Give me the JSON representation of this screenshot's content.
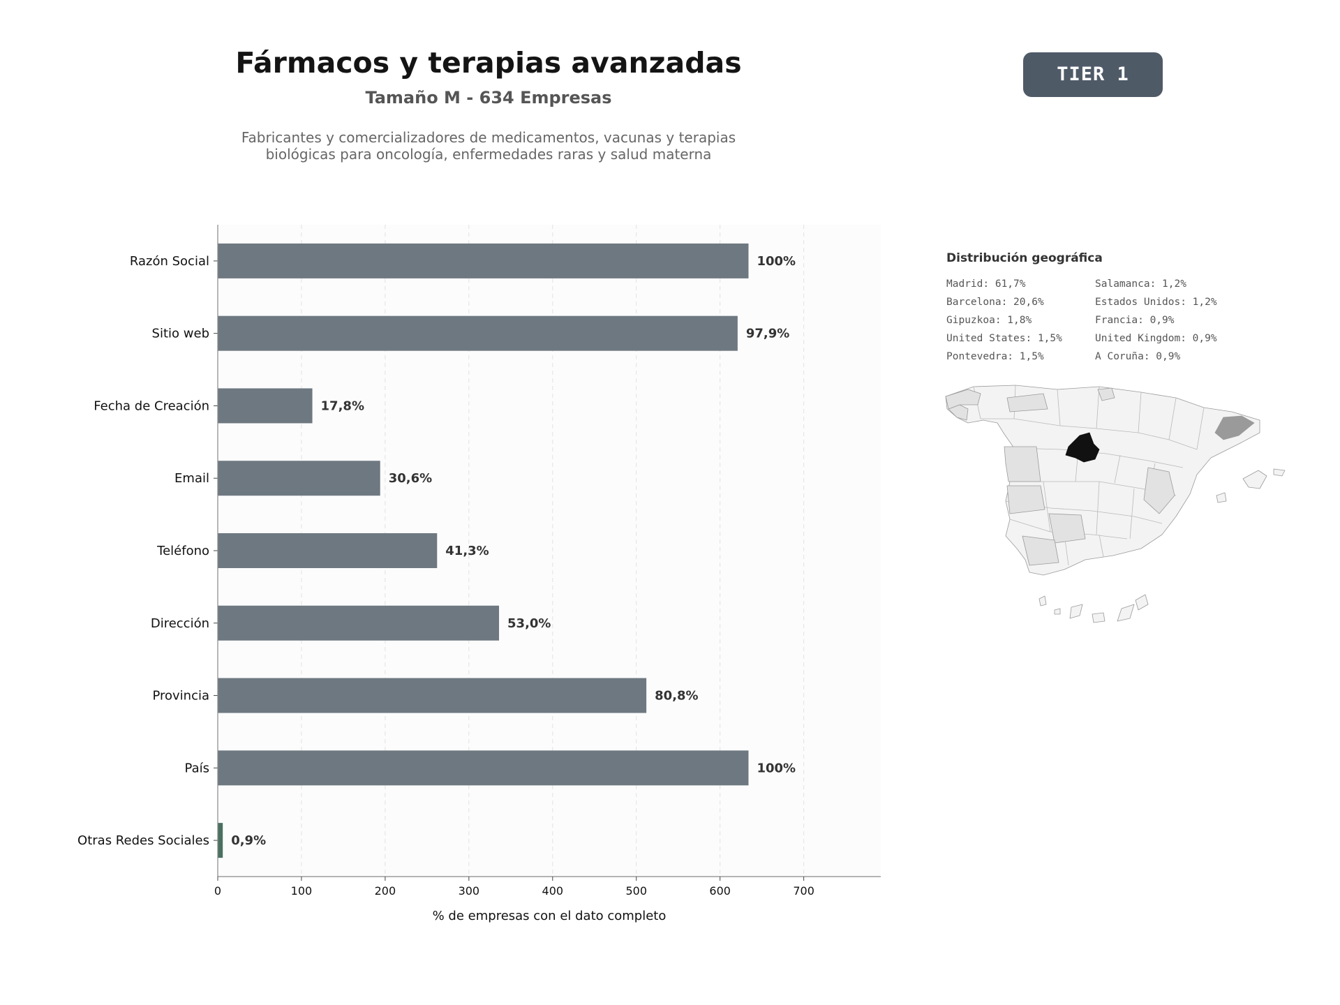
{
  "header": {
    "title": "Fármacos y terapias avanzadas",
    "subtitle": "Tamaño M - 634 Empresas",
    "description_line1": "Fabricantes y comercializadores de medicamentos, vacunas y terapias",
    "description_line2": "biológicas para oncología, enfermedades raras y salud materna",
    "tier": "TIER 1"
  },
  "chart_data": {
    "type": "bar",
    "orientation": "horizontal",
    "categories": [
      "Razón Social",
      "Sitio web",
      "Fecha de Creación",
      "Email",
      "Teléfono",
      "Dirección",
      "Provincia",
      "País",
      "Otras Redes Sociales"
    ],
    "values": [
      634,
      621,
      113,
      194,
      262,
      336,
      512,
      634,
      6
    ],
    "data_labels": [
      "100%",
      "97,9%",
      "17,8%",
      "30,6%",
      "41,3%",
      "53,0%",
      "80,8%",
      "100%",
      "0,9%"
    ],
    "xlabel": "% de empresas con el dato completo",
    "xlim": [
      0,
      792
    ],
    "xticks": [
      0,
      100,
      200,
      300,
      400,
      500,
      600,
      700
    ],
    "grid": "vertical dashed",
    "colors": {
      "bar": "#6e7881",
      "highlight": "#4a7060"
    },
    "highlight_index": 8
  },
  "geo": {
    "title": "Distribución geográfica",
    "items": [
      "Madrid: 61,7%",
      "Salamanca: 1,2%",
      "Barcelona: 20,6%",
      "Estados Unidos: 1,2%",
      "Gipuzkoa: 1,8%",
      "Francia: 0,9%",
      "United States: 1,5%",
      "United Kingdom: 0,9%",
      "Pontevedra: 1,5%",
      "A Coruña: 0,9%"
    ],
    "colors": {
      "madrid": "#111111",
      "barcelona": "#9a9a9a",
      "mid": "#e2e2e2",
      "low": "#f3f3f3",
      "border": "#9a9a9a"
    }
  }
}
